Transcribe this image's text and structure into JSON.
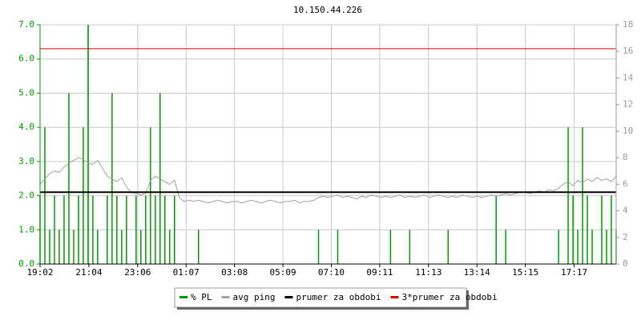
{
  "chart_data": {
    "type": "line",
    "title": "10.150.44.226",
    "x": [
      0,
      12,
      24,
      36,
      48,
      60,
      72,
      84,
      96,
      108,
      120,
      132,
      144,
      156,
      168,
      180,
      192,
      204,
      216,
      228,
      240,
      252,
      264,
      276,
      288,
      300,
      312,
      324,
      336,
      348,
      360,
      372,
      384,
      396,
      408,
      420,
      432,
      444,
      456,
      468,
      480,
      492,
      504,
      516,
      528,
      540,
      552,
      564,
      576,
      588,
      600,
      612,
      624,
      636,
      648,
      660,
      672,
      684,
      696,
      708,
      720,
      732,
      744,
      756,
      768,
      780,
      792,
      804,
      816,
      828,
      840,
      852,
      864,
      876,
      888,
      900,
      912,
      924,
      936,
      948,
      960,
      972,
      984,
      996,
      1008,
      1020,
      1032,
      1044,
      1056,
      1068,
      1080,
      1092,
      1104,
      1116,
      1128,
      1140,
      1152,
      1164,
      1176,
      1188,
      1200,
      1212,
      1224,
      1236,
      1248,
      1260,
      1272,
      1284,
      1296,
      1308,
      1320,
      1332,
      1344,
      1356,
      1368,
      1380,
      1392,
      1404,
      1416,
      1428,
      1440
    ],
    "xlim": [
      0,
      1440
    ],
    "xticks": [
      {
        "value": 0,
        "label": "19:02"
      },
      {
        "value": 122,
        "label": "21:04"
      },
      {
        "value": 244,
        "label": "23:06"
      },
      {
        "value": 365,
        "label": "01:07"
      },
      {
        "value": 486,
        "label": "03:08"
      },
      {
        "value": 607,
        "label": "05:09"
      },
      {
        "value": 728,
        "label": "07:10"
      },
      {
        "value": 849,
        "label": "09:11"
      },
      {
        "value": 971,
        "label": "11:13"
      },
      {
        "value": 1092,
        "label": "13:14"
      },
      {
        "value": 1213,
        "label": "15:15"
      },
      {
        "value": 1335,
        "label": "17:17"
      }
    ],
    "ylim": [
      0,
      7
    ],
    "yticks": [
      {
        "value": 0,
        "label": "0.0"
      },
      {
        "value": 1,
        "label": "1.0"
      },
      {
        "value": 2,
        "label": "2.0"
      },
      {
        "value": 3,
        "label": "3.0"
      },
      {
        "value": 4,
        "label": "4.0"
      },
      {
        "value": 5,
        "label": "5.0"
      },
      {
        "value": 6,
        "label": "6.0"
      },
      {
        "value": 7,
        "label": "7.0"
      }
    ],
    "y2lim": [
      0,
      18
    ],
    "y2ticks": [
      0,
      2,
      4,
      6,
      8,
      10,
      12,
      14,
      16,
      18
    ],
    "grid": true,
    "series": [
      {
        "name": "% PL",
        "color": "#009900",
        "axis": "y",
        "style": "impulse",
        "values": [
          2,
          4,
          1,
          2,
          1,
          2,
          5,
          1,
          2,
          4,
          7,
          2,
          1,
          0,
          2,
          5,
          2,
          1,
          2,
          0,
          2,
          1,
          2,
          4,
          2,
          5,
          2,
          1,
          2,
          0,
          0,
          0,
          0,
          1,
          0,
          0,
          0,
          0,
          0,
          0,
          0,
          0,
          0,
          0,
          0,
          0,
          0,
          0,
          0,
          0,
          0,
          0,
          0,
          0,
          0,
          0,
          0,
          0,
          1,
          0,
          0,
          0,
          1,
          0,
          0,
          0,
          0,
          0,
          0,
          0,
          0,
          0,
          0,
          1,
          0,
          0,
          0,
          1,
          0,
          0,
          0,
          0,
          0,
          0,
          0,
          1,
          0,
          0,
          0,
          0,
          0,
          0,
          0,
          0,
          0,
          2,
          0,
          1,
          0,
          0,
          0,
          0,
          0,
          0,
          0,
          0,
          0,
          0,
          1,
          0,
          4,
          2,
          1,
          4,
          2,
          1,
          0,
          2,
          1,
          2,
          1
        ]
      },
      {
        "name": "avg ping",
        "color": "#a0a0a0",
        "axis": "y2",
        "style": "line",
        "values": [
          6.0,
          6.4,
          6.8,
          7.0,
          6.9,
          7.3,
          7.6,
          7.8,
          8.0,
          7.9,
          7.6,
          7.5,
          7.8,
          7.2,
          6.6,
          6.4,
          6.2,
          6.5,
          5.8,
          5.4,
          5.3,
          5.2,
          5.3,
          6.3,
          6.6,
          6.4,
          6.2,
          6.0,
          6.3,
          5.0,
          4.7,
          4.8,
          4.7,
          4.8,
          4.7,
          4.6,
          4.7,
          4.8,
          4.7,
          4.6,
          4.7,
          4.7,
          4.6,
          4.7,
          4.8,
          4.7,
          4.6,
          4.7,
          4.8,
          4.7,
          4.6,
          4.7,
          4.7,
          4.8,
          4.6,
          4.7,
          4.7,
          4.8,
          5.0,
          5.1,
          5.0,
          5.1,
          5.2,
          5.0,
          5.1,
          5.0,
          4.9,
          5.1,
          5.0,
          5.2,
          5.1,
          5.0,
          5.1,
          5.0,
          5.1,
          5.2,
          5.0,
          5.1,
          5.0,
          5.1,
          5.2,
          5.0,
          5.1,
          5.2,
          5.1,
          5.0,
          5.1,
          5.0,
          5.2,
          5.1,
          5.0,
          5.1,
          5.0,
          5.1,
          5.2,
          5.1,
          5.2,
          5.3,
          5.2,
          5.3,
          5.4,
          5.4,
          5.3,
          5.4,
          5.5,
          5.4,
          5.6,
          5.5,
          5.7,
          6.0,
          6.2,
          5.9,
          6.3,
          6.1,
          6.4,
          6.2,
          6.5,
          6.3,
          6.4,
          6.2,
          6.6
        ]
      },
      {
        "name": "prumer za obdobi",
        "color": "#000000",
        "axis": "y2",
        "style": "hline",
        "value": 5.4
      },
      {
        "name": "3*prumer za obdobi",
        "color": "#e00000",
        "axis": "y2",
        "style": "hline",
        "value": 16.2
      }
    ]
  }
}
